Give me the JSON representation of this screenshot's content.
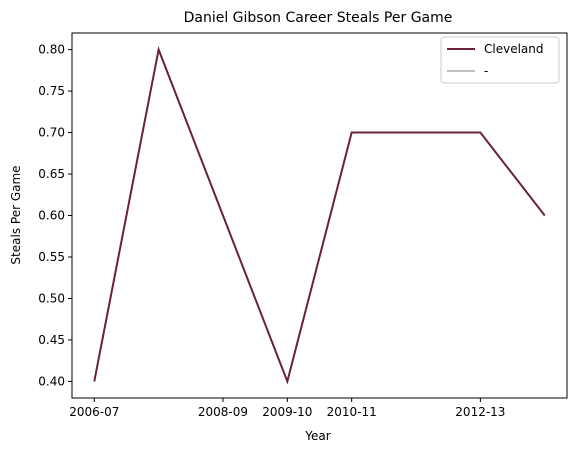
{
  "chart_data": {
    "type": "line",
    "title": "Daniel Gibson Career Steals Per Game",
    "xlabel": "Year",
    "ylabel": "Steals Per Game",
    "x_tick_labels": [
      "2006-07",
      "2008-09",
      "2009-10",
      "2010-11",
      "2012-13"
    ],
    "y_tick_labels": [
      "0.40",
      "0.45",
      "0.50",
      "0.55",
      "0.60",
      "0.65",
      "0.70",
      "0.75",
      "0.80"
    ],
    "ylim": [
      0.38,
      0.82
    ],
    "grid": false,
    "legend_position": "top-right",
    "series": [
      {
        "name": "Cleveland",
        "color": "#6a2140",
        "points": [
          {
            "x": "2006-07",
            "y": 0.4
          },
          {
            "x": "2007-08",
            "y": 0.8
          },
          {
            "x": "2008-09",
            "y": 0.6
          },
          {
            "x": "2009-10",
            "y": 0.4
          },
          {
            "x": "2010-11",
            "y": 0.7
          },
          {
            "x": "2011-12",
            "y": 0.7
          },
          {
            "x": "2012-13",
            "y": 0.7
          },
          {
            "x": "2013-14",
            "y": 0.6
          }
        ]
      },
      {
        "name": "-",
        "color": "#bfbfbf",
        "points": []
      }
    ]
  }
}
